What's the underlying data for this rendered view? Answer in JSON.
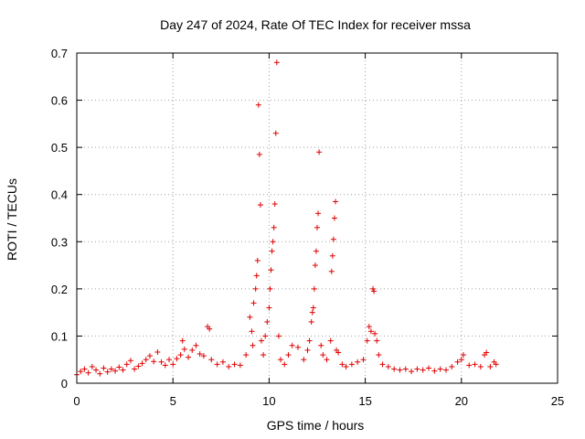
{
  "chart_data": {
    "type": "scatter",
    "title": "Day 247 of 2024, Rate Of TEC Index for receiver mssa",
    "xlabel": "GPS time / hours",
    "ylabel": "ROTI / TECUs",
    "xlim": [
      0,
      25
    ],
    "ylim": [
      0,
      0.7
    ],
    "xticks": [
      "0",
      "5",
      "10",
      "15",
      "20",
      "25"
    ],
    "yticks": [
      "0",
      "0.1",
      "0.2",
      "0.3",
      "0.4",
      "0.5",
      "0.6",
      "0.7"
    ],
    "grid": true,
    "marker": "+",
    "color": "#e00000",
    "series": [
      {
        "points": [
          [
            0.0,
            0.018
          ],
          [
            0.2,
            0.025
          ],
          [
            0.4,
            0.03
          ],
          [
            0.6,
            0.022
          ],
          [
            0.8,
            0.035
          ],
          [
            1.0,
            0.028
          ],
          [
            1.2,
            0.02
          ],
          [
            1.4,
            0.032
          ],
          [
            1.6,
            0.024
          ],
          [
            1.8,
            0.03
          ],
          [
            2.0,
            0.026
          ],
          [
            2.2,
            0.034
          ],
          [
            2.4,
            0.028
          ],
          [
            2.6,
            0.04
          ],
          [
            2.8,
            0.048
          ],
          [
            3.0,
            0.03
          ],
          [
            3.2,
            0.036
          ],
          [
            3.4,
            0.042
          ],
          [
            3.6,
            0.05
          ],
          [
            3.8,
            0.058
          ],
          [
            4.0,
            0.046
          ],
          [
            4.2,
            0.066
          ],
          [
            4.4,
            0.045
          ],
          [
            4.6,
            0.038
          ],
          [
            4.8,
            0.05
          ],
          [
            5.0,
            0.04
          ],
          [
            5.2,
            0.052
          ],
          [
            5.4,
            0.06
          ],
          [
            5.5,
            0.09
          ],
          [
            5.6,
            0.072
          ],
          [
            5.8,
            0.055
          ],
          [
            6.0,
            0.07
          ],
          [
            6.2,
            0.08
          ],
          [
            6.4,
            0.062
          ],
          [
            6.6,
            0.058
          ],
          [
            6.8,
            0.12
          ],
          [
            6.9,
            0.115
          ],
          [
            7.0,
            0.05
          ],
          [
            7.3,
            0.04
          ],
          [
            7.6,
            0.045
          ],
          [
            7.9,
            0.035
          ],
          [
            8.2,
            0.04
          ],
          [
            8.5,
            0.038
          ],
          [
            8.8,
            0.06
          ],
          [
            9.0,
            0.14
          ],
          [
            9.1,
            0.11
          ],
          [
            9.15,
            0.08
          ],
          [
            9.2,
            0.17
          ],
          [
            9.3,
            0.2
          ],
          [
            9.35,
            0.228
          ],
          [
            9.4,
            0.26
          ],
          [
            9.45,
            0.59
          ],
          [
            9.5,
            0.485
          ],
          [
            9.55,
            0.378
          ],
          [
            9.6,
            0.09
          ],
          [
            9.7,
            0.06
          ],
          [
            9.8,
            0.1
          ],
          [
            9.9,
            0.13
          ],
          [
            10.0,
            0.16
          ],
          [
            10.05,
            0.2
          ],
          [
            10.1,
            0.24
          ],
          [
            10.15,
            0.28
          ],
          [
            10.2,
            0.3
          ],
          [
            10.25,
            0.33
          ],
          [
            10.3,
            0.38
          ],
          [
            10.35,
            0.53
          ],
          [
            10.4,
            0.68
          ],
          [
            10.5,
            0.1
          ],
          [
            10.6,
            0.05
          ],
          [
            10.8,
            0.04
          ],
          [
            11.0,
            0.06
          ],
          [
            11.2,
            0.08
          ],
          [
            11.5,
            0.076
          ],
          [
            11.8,
            0.05
          ],
          [
            12.0,
            0.07
          ],
          [
            12.1,
            0.09
          ],
          [
            12.2,
            0.13
          ],
          [
            12.25,
            0.15
          ],
          [
            12.3,
            0.16
          ],
          [
            12.35,
            0.2
          ],
          [
            12.4,
            0.25
          ],
          [
            12.45,
            0.28
          ],
          [
            12.5,
            0.33
          ],
          [
            12.55,
            0.36
          ],
          [
            12.6,
            0.49
          ],
          [
            12.7,
            0.08
          ],
          [
            12.8,
            0.06
          ],
          [
            13.0,
            0.05
          ],
          [
            13.2,
            0.09
          ],
          [
            13.25,
            0.237
          ],
          [
            13.3,
            0.27
          ],
          [
            13.35,
            0.305
          ],
          [
            13.4,
            0.35
          ],
          [
            13.45,
            0.385
          ],
          [
            13.5,
            0.07
          ],
          [
            13.6,
            0.065
          ],
          [
            13.8,
            0.04
          ],
          [
            14.0,
            0.035
          ],
          [
            14.3,
            0.04
          ],
          [
            14.6,
            0.045
          ],
          [
            14.9,
            0.05
          ],
          [
            15.1,
            0.09
          ],
          [
            15.2,
            0.12
          ],
          [
            15.3,
            0.11
          ],
          [
            15.4,
            0.2
          ],
          [
            15.45,
            0.195
          ],
          [
            15.5,
            0.105
          ],
          [
            15.6,
            0.09
          ],
          [
            15.7,
            0.06
          ],
          [
            15.9,
            0.04
          ],
          [
            16.2,
            0.035
          ],
          [
            16.5,
            0.03
          ],
          [
            16.8,
            0.028
          ],
          [
            17.1,
            0.03
          ],
          [
            17.4,
            0.025
          ],
          [
            17.7,
            0.03
          ],
          [
            18.0,
            0.028
          ],
          [
            18.3,
            0.032
          ],
          [
            18.6,
            0.026
          ],
          [
            18.9,
            0.03
          ],
          [
            19.2,
            0.028
          ],
          [
            19.5,
            0.035
          ],
          [
            19.8,
            0.045
          ],
          [
            20.0,
            0.05
          ],
          [
            20.1,
            0.06
          ],
          [
            20.4,
            0.038
          ],
          [
            20.7,
            0.04
          ],
          [
            21.0,
            0.035
          ],
          [
            21.2,
            0.06
          ],
          [
            21.3,
            0.065
          ],
          [
            21.5,
            0.035
          ],
          [
            21.7,
            0.045
          ],
          [
            21.8,
            0.04
          ]
        ]
      }
    ]
  }
}
